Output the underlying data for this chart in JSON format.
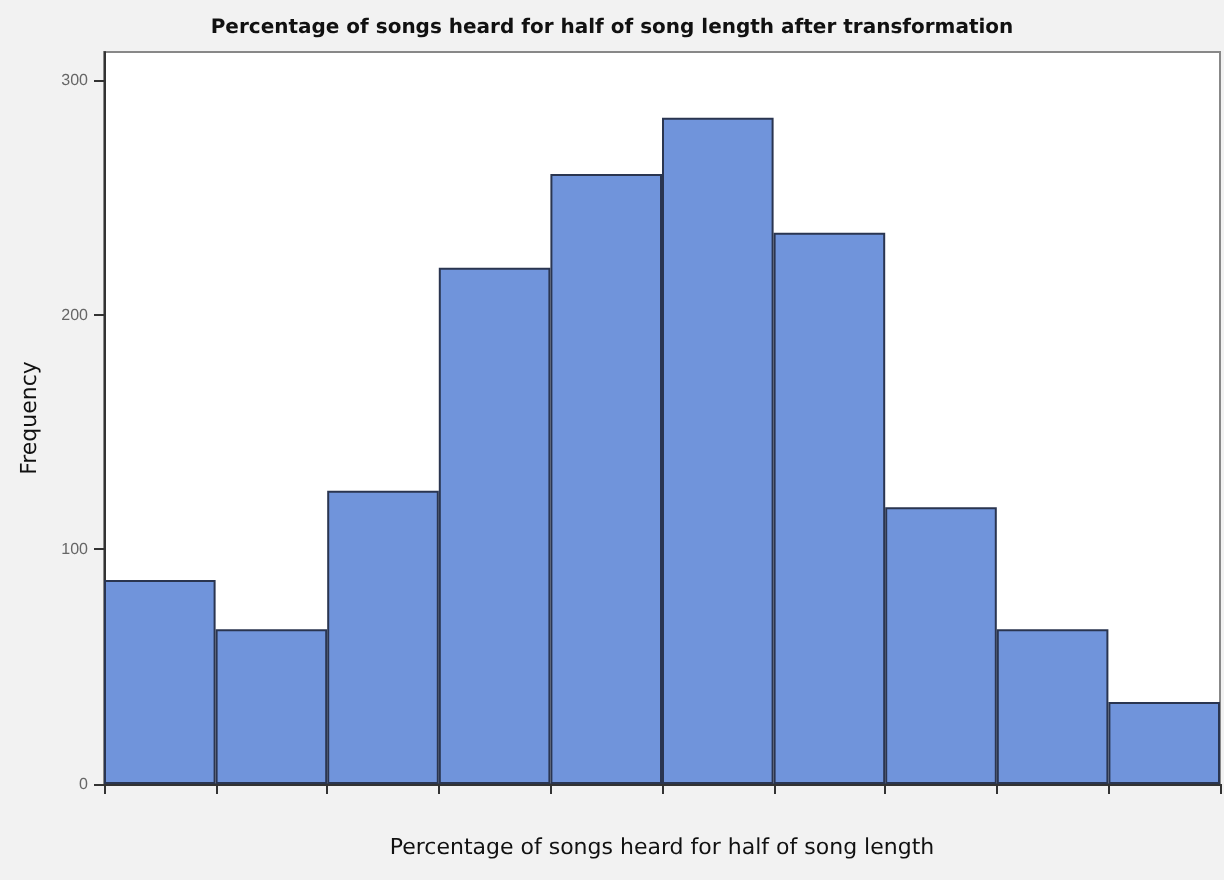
{
  "chart_data": {
    "type": "bar",
    "title": "Percentage of songs heard for half of song length after transformation",
    "xlabel": "Percentage of songs heard for half of song length",
    "ylabel": "Frequency",
    "categories": [
      null,
      null,
      null,
      null,
      null,
      null,
      null,
      null,
      null,
      null
    ],
    "values": [
      87,
      66,
      125,
      220,
      260,
      284,
      235,
      118,
      66,
      35
    ],
    "color": "#7094db",
    "ylim": [
      0,
      312
    ],
    "yticks": [
      0,
      100,
      200,
      300
    ],
    "tick_labels": "y",
    "grid": false
  }
}
